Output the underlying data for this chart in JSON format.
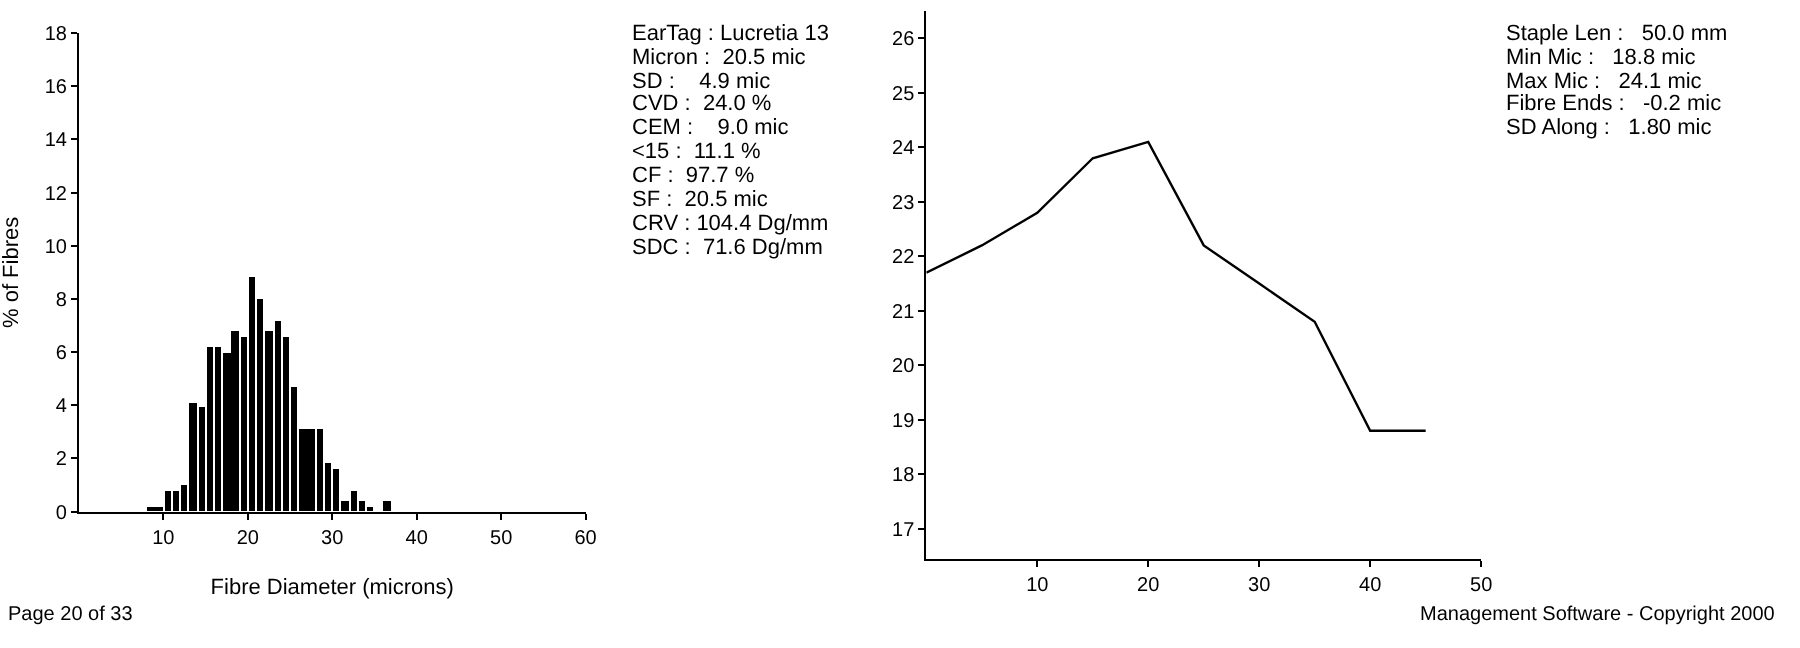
{
  "chart_data": [
    {
      "type": "histogram",
      "xlabel": "Fibre Diameter (microns)",
      "ylabel": "% of Fibres",
      "bins": [
        8,
        9,
        10,
        11,
        12,
        13,
        14,
        15,
        16,
        17,
        18,
        19,
        20,
        21,
        22,
        23,
        24,
        25,
        26,
        27,
        28,
        29,
        30,
        31,
        32,
        33,
        34,
        35,
        36,
        37
      ],
      "values": [
        0.2,
        0.2,
        0.8,
        0.8,
        1.0,
        4.1,
        3.9,
        6.2,
        6.2,
        6.0,
        6.8,
        6.6,
        8.8,
        8.0,
        6.8,
        7.2,
        6.6,
        4.7,
        3.1,
        3.1,
        3.1,
        1.8,
        1.6,
        0.4,
        0.8,
        0.4,
        0.2,
        0,
        0.4
      ],
      "color": "#000000",
      "xlim": [
        0,
        60
      ],
      "xticks": [
        10,
        20,
        30,
        40,
        50,
        60
      ],
      "ylim": [
        0,
        18
      ],
      "yticks": [
        0,
        2,
        4,
        6,
        8,
        10,
        12,
        14,
        16,
        18
      ],
      "annotations": [
        "Page 20 of 33"
      ]
    },
    {
      "type": "other",
      "annotations": [
        "EarTag : Lucretia 13",
        "Micron :  20.5 mic",
        "SD :    4.9 mic",
        "CVD :  24.0 %",
        "CEM :    9.0 mic",
        "<15 :  11.1 %",
        "CF :  97.7 %",
        "SF :  20.5 mic",
        "CRV : 104.4 Dg/mm",
        "SDC :  71.6 Dg/mm"
      ]
    },
    {
      "type": "line",
      "x": [
        0,
        5,
        10,
        15,
        20,
        25,
        30,
        35,
        40,
        45
      ],
      "series": [
        {
          "color": "#000000",
          "values": [
            21.7,
            22.2,
            22.8,
            23.8,
            24.1,
            22.2,
            21.5,
            20.8,
            18.8,
            18.8
          ]
        }
      ],
      "xlim": [
        0,
        50
      ],
      "xticks": [
        10,
        20,
        30,
        40,
        50
      ],
      "ylim": [
        16.45,
        26.5
      ],
      "yticks": [
        17,
        18,
        19,
        20,
        21,
        22,
        23,
        24,
        25,
        26
      ],
      "marker": "none",
      "line_style": "solid",
      "annotations": [
        "Management Software - Copyright 2000"
      ]
    },
    {
      "type": "other",
      "annotations": [
        "Staple Len :   50.0 mm",
        "Min Mic :   18.8 mic",
        "Max Mic :   24.1 mic",
        "Fibre Ends :   -0.2 mic",
        "SD Along :   1.80 mic"
      ]
    }
  ]
}
